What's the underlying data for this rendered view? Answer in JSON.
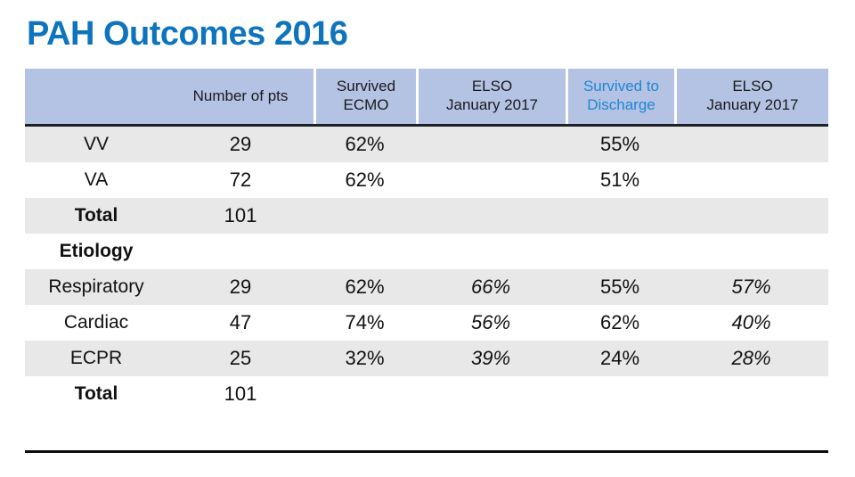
{
  "title": "PAH Outcomes 2016",
  "colors": {
    "title_blue": "#0e74bd",
    "header_bg": "#b4c2e4",
    "header_highlight_blue": "#1f87d2",
    "row_alt_gray": "#e8e8e8",
    "header_border_dark": "#1d2027",
    "line_black": "#0c0c0c"
  },
  "table": {
    "header": {
      "cells": [
        {
          "line1": "",
          "line2": ""
        },
        {
          "line1": "Number of pts",
          "line2": ""
        },
        {
          "line1": "Survived",
          "line2": "ECMO"
        },
        {
          "line1": "ELSO",
          "line2": "January 2017"
        },
        {
          "line1": "Survived to",
          "line2": "Discharge"
        },
        {
          "line1": "ELSO",
          "line2": "January 2017"
        }
      ]
    }
  },
  "chart_data": {
    "type": "table",
    "title": "PAH Outcomes 2016",
    "columns": [
      "",
      "Number of pts",
      "Survived ECMO",
      "ELSO January 2017",
      "Survived to Discharge",
      "ELSO January 2017"
    ],
    "rows": [
      [
        "VV",
        "29",
        "62%",
        "",
        "55%",
        ""
      ],
      [
        "VA",
        "72",
        "62%",
        "",
        "51%",
        ""
      ],
      [
        "Total",
        "101",
        "",
        "",
        "",
        ""
      ],
      [
        "Etiology",
        "",
        "",
        "",
        "",
        ""
      ],
      [
        "Respiratory",
        "29",
        "62%",
        "66%",
        "55%",
        "57%"
      ],
      [
        "Cardiac",
        "47",
        "74%",
        "56%",
        "62%",
        "40%"
      ],
      [
        "ECPR",
        "25",
        "32%",
        "39%",
        "24%",
        "28%"
      ],
      [
        "Total",
        "101",
        "",
        "",
        "",
        ""
      ]
    ],
    "notes": "ELSO January 2017 benchmark values shown in italics; Survived to Discharge column header shown in blue"
  }
}
